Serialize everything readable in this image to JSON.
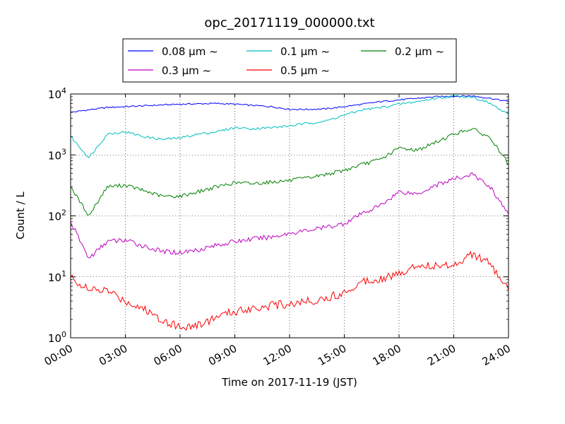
{
  "chart_data": {
    "type": "line",
    "title": "opc_20171119_000000.txt",
    "xlabel": "Time on 2017-11-19 (JST)",
    "ylabel": "Count / L",
    "xlim": [
      "00:00",
      "24:00"
    ],
    "ylim": [
      1,
      10000
    ],
    "y_scale": "log",
    "grid": true,
    "legend_position": "top-center, above plot",
    "x_ticks": [
      "00:00",
      "03:00",
      "06:00",
      "09:00",
      "12:00",
      "15:00",
      "18:00",
      "21:00",
      "24:00"
    ],
    "y_ticks": [
      {
        "value": 1,
        "base": "10",
        "exp": "0"
      },
      {
        "value": 10,
        "base": "10",
        "exp": "1"
      },
      {
        "value": 100,
        "base": "10",
        "exp": "2"
      },
      {
        "value": 1000,
        "base": "10",
        "exp": "3"
      },
      {
        "value": 10000,
        "base": "10",
        "exp": "4"
      }
    ],
    "x": [
      "00:00",
      "01:00",
      "02:00",
      "03:00",
      "04:00",
      "05:00",
      "06:00",
      "07:00",
      "08:00",
      "09:00",
      "10:00",
      "11:00",
      "12:00",
      "13:00",
      "14:00",
      "15:00",
      "16:00",
      "17:00",
      "18:00",
      "19:00",
      "20:00",
      "21:00",
      "22:00",
      "23:00",
      "24:00"
    ],
    "series": [
      {
        "name": "0.08 μm ~",
        "color": "#0000ff",
        "values": [
          5000,
          5500,
          6000,
          6200,
          6400,
          6600,
          6800,
          6900,
          7000,
          6800,
          6500,
          6200,
          5600,
          5600,
          5700,
          6200,
          6800,
          7500,
          8000,
          8500,
          9000,
          9200,
          9300,
          8500,
          7500
        ]
      },
      {
        "name": "0.1 μm ~",
        "color": "#00bfbf",
        "values": [
          2000,
          900,
          2200,
          2400,
          2000,
          1800,
          1900,
          2200,
          2400,
          2800,
          2700,
          2800,
          3000,
          3300,
          3600,
          4500,
          5500,
          6000,
          6800,
          7500,
          8500,
          9200,
          9000,
          7000,
          4500
        ]
      },
      {
        "name": "0.2 μm ~",
        "color": "#008000",
        "values": [
          300,
          100,
          300,
          320,
          260,
          210,
          210,
          250,
          300,
          350,
          340,
          360,
          380,
          420,
          480,
          560,
          700,
          850,
          1300,
          1200,
          1600,
          2200,
          2700,
          1900,
          700
        ]
      },
      {
        "name": "0.3 μm ~",
        "color": "#bf00bf",
        "values": [
          80,
          20,
          38,
          40,
          32,
          26,
          25,
          28,
          33,
          38,
          42,
          45,
          52,
          58,
          65,
          75,
          110,
          150,
          250,
          230,
          320,
          400,
          480,
          300,
          105
        ]
      },
      {
        "name": "0.5 μm ~",
        "color": "#ff0000",
        "values": [
          10,
          6,
          6,
          4,
          3,
          2,
          1.5,
          1.6,
          2.2,
          2.7,
          3.1,
          3.4,
          3.6,
          4.0,
          4.4,
          5.5,
          8.5,
          9.5,
          11,
          16,
          15,
          16,
          24,
          16,
          6
        ]
      }
    ]
  }
}
